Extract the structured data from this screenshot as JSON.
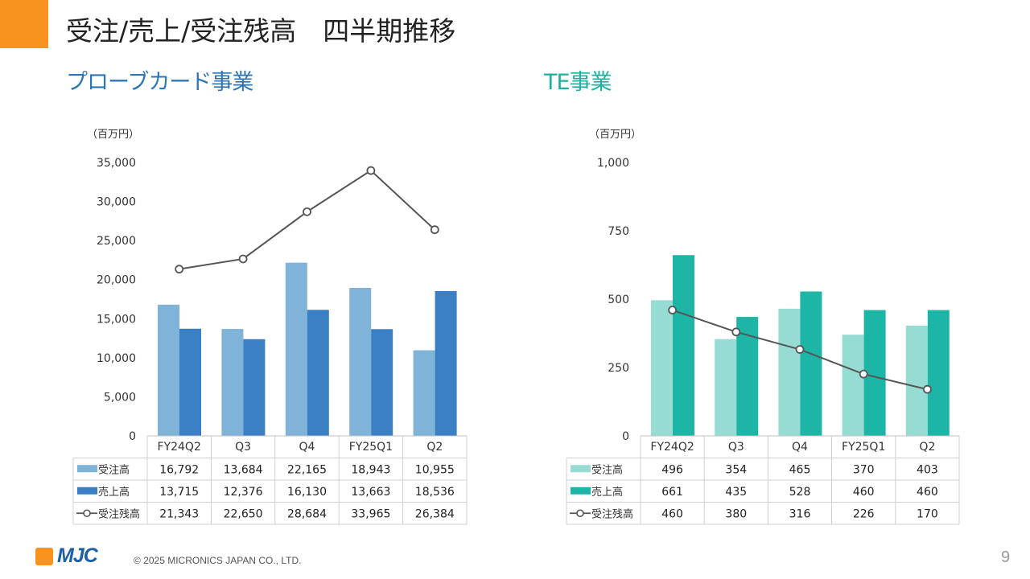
{
  "title": "受注/売上/受注残高　四半期推移",
  "sections": {
    "probe": {
      "title": "プローブカード事業",
      "unit": "（百万円）"
    },
    "te": {
      "title": "TE事業",
      "unit": "（百万円）"
    }
  },
  "footer": {
    "copyright": "© 2025 MICRONICS JAPAN CO., LTD.",
    "page": "9",
    "logo_text": "MJC"
  },
  "colors": {
    "accent": "#f7931e",
    "probe_orders": "#7fb3d8",
    "probe_sales": "#3a7fc4",
    "te_orders": "#96dcd3",
    "te_sales": "#1db5a5",
    "line": "#555555"
  },
  "chart_data": [
    {
      "type": "bar",
      "categories": [
        "FY24Q2",
        "Q3",
        "Q4",
        "FY25Q1",
        "Q2"
      ],
      "series": [
        {
          "name": "受注高",
          "kind": "bar",
          "values": [
            16792,
            13684,
            22165,
            18943,
            10955
          ]
        },
        {
          "name": "売上高",
          "kind": "bar",
          "values": [
            13715,
            12376,
            16130,
            13663,
            18536
          ]
        },
        {
          "name": "受注残高",
          "kind": "line",
          "values": [
            21343,
            22650,
            28684,
            33965,
            26384
          ]
        }
      ],
      "value_labels": [
        [
          "16,792",
          "13,684",
          "22,165",
          "18,943",
          "10,955"
        ],
        [
          "13,715",
          "12,376",
          "16,130",
          "13,663",
          "18,536"
        ],
        [
          "21,343",
          "22,650",
          "28,684",
          "33,965",
          "26,384"
        ]
      ],
      "ylim": [
        0,
        35000
      ],
      "yticks": [
        0,
        5000,
        10000,
        15000,
        20000,
        25000,
        30000,
        35000
      ],
      "ytick_labels": [
        "0",
        "5,000",
        "10,000",
        "15,000",
        "20,000",
        "25,000",
        "30,000",
        "35,000"
      ],
      "legend": "data-table",
      "grid": false
    },
    {
      "type": "bar",
      "categories": [
        "FY24Q2",
        "Q3",
        "Q4",
        "FY25Q1",
        "Q2"
      ],
      "series": [
        {
          "name": "受注高",
          "kind": "bar",
          "values": [
            496,
            354,
            465,
            370,
            403
          ]
        },
        {
          "name": "売上高",
          "kind": "bar",
          "values": [
            661,
            435,
            528,
            460,
            460
          ]
        },
        {
          "name": "受注残高",
          "kind": "line",
          "values": [
            460,
            380,
            316,
            226,
            170
          ]
        }
      ],
      "value_labels": [
        [
          "496",
          "354",
          "465",
          "370",
          "403"
        ],
        [
          "661",
          "435",
          "528",
          "460",
          "460"
        ],
        [
          "460",
          "380",
          "316",
          "226",
          "170"
        ]
      ],
      "ylim": [
        0,
        1000
      ],
      "yticks": [
        0,
        250,
        500,
        750,
        1000
      ],
      "ytick_labels": [
        "0",
        "250",
        "500",
        "750",
        "1,000"
      ],
      "legend": "data-table",
      "grid": false
    }
  ]
}
